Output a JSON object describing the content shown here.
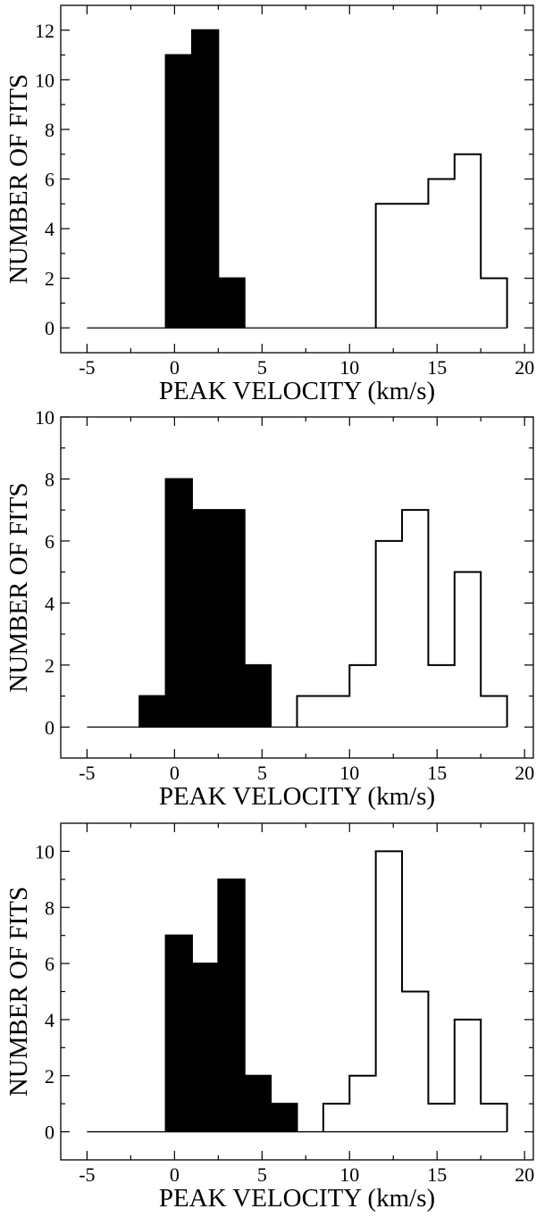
{
  "chart_data": [
    {
      "type": "bar",
      "title": "",
      "xlabel": "PEAK VELOCITY (km/s)",
      "ylabel": "NUMBER OF FITS",
      "xlim": [
        -6.5,
        20.5
      ],
      "ylim": [
        -1,
        13
      ],
      "xticks": [
        -5,
        0,
        5,
        10,
        15,
        20
      ],
      "yticks": [
        0,
        2,
        4,
        6,
        8,
        10,
        12
      ],
      "baseline_x": [
        -5,
        19
      ],
      "bin_width": 1.5,
      "series": [
        {
          "name": "filled",
          "style": "filled",
          "bins": [
            {
              "x": -0.5,
              "y": 11
            },
            {
              "x": 1,
              "y": 12
            },
            {
              "x": 2.5,
              "y": 2
            }
          ]
        },
        {
          "name": "open",
          "style": "open",
          "bins": [
            {
              "x": 11.5,
              "y": 5
            },
            {
              "x": 13,
              "y": 5
            },
            {
              "x": 14.5,
              "y": 6
            },
            {
              "x": 16,
              "y": 7
            },
            {
              "x": 17.5,
              "y": 2
            }
          ]
        }
      ]
    },
    {
      "type": "bar",
      "title": "",
      "xlabel": "PEAK VELOCITY (km/s)",
      "ylabel": "NUMBER OF FITS",
      "xlim": [
        -6.5,
        20.5
      ],
      "ylim": [
        -1,
        10
      ],
      "xticks": [
        -5,
        0,
        5,
        10,
        15,
        20
      ],
      "yticks": [
        0,
        2,
        4,
        6,
        8,
        10
      ],
      "baseline_x": [
        -5,
        19
      ],
      "bin_width": 1.5,
      "series": [
        {
          "name": "filled",
          "style": "filled",
          "bins": [
            {
              "x": -2,
              "y": 1
            },
            {
              "x": -0.5,
              "y": 8
            },
            {
              "x": 1,
              "y": 7
            },
            {
              "x": 2.5,
              "y": 7
            },
            {
              "x": 4,
              "y": 2
            }
          ]
        },
        {
          "name": "open",
          "style": "open",
          "bins": [
            {
              "x": 7,
              "y": 1
            },
            {
              "x": 8.5,
              "y": 1
            },
            {
              "x": 10,
              "y": 2
            },
            {
              "x": 11.5,
              "y": 6
            },
            {
              "x": 13,
              "y": 7
            },
            {
              "x": 14.5,
              "y": 2
            },
            {
              "x": 16,
              "y": 5
            },
            {
              "x": 17.5,
              "y": 1
            }
          ]
        }
      ]
    },
    {
      "type": "bar",
      "title": "",
      "xlabel": "PEAK VELOCITY (km/s)",
      "ylabel": "NUMBER OF FITS",
      "xlim": [
        -6.5,
        20.5
      ],
      "ylim": [
        -1,
        11
      ],
      "xticks": [
        -5,
        0,
        5,
        10,
        15,
        20
      ],
      "yticks": [
        0,
        2,
        4,
        6,
        8,
        10
      ],
      "baseline_x": [
        -5,
        19
      ],
      "bin_width": 1.5,
      "series": [
        {
          "name": "filled",
          "style": "filled",
          "bins": [
            {
              "x": -0.5,
              "y": 7
            },
            {
              "x": 1,
              "y": 6
            },
            {
              "x": 2.5,
              "y": 9
            },
            {
              "x": 4,
              "y": 2
            },
            {
              "x": 5.5,
              "y": 1
            }
          ]
        },
        {
          "name": "open",
          "style": "open",
          "bins": [
            {
              "x": 8.5,
              "y": 1
            },
            {
              "x": 10,
              "y": 2
            },
            {
              "x": 11.5,
              "y": 10
            },
            {
              "x": 13,
              "y": 5
            },
            {
              "x": 14.5,
              "y": 1
            },
            {
              "x": 16,
              "y": 4
            },
            {
              "x": 17.5,
              "y": 1
            }
          ]
        }
      ]
    }
  ]
}
